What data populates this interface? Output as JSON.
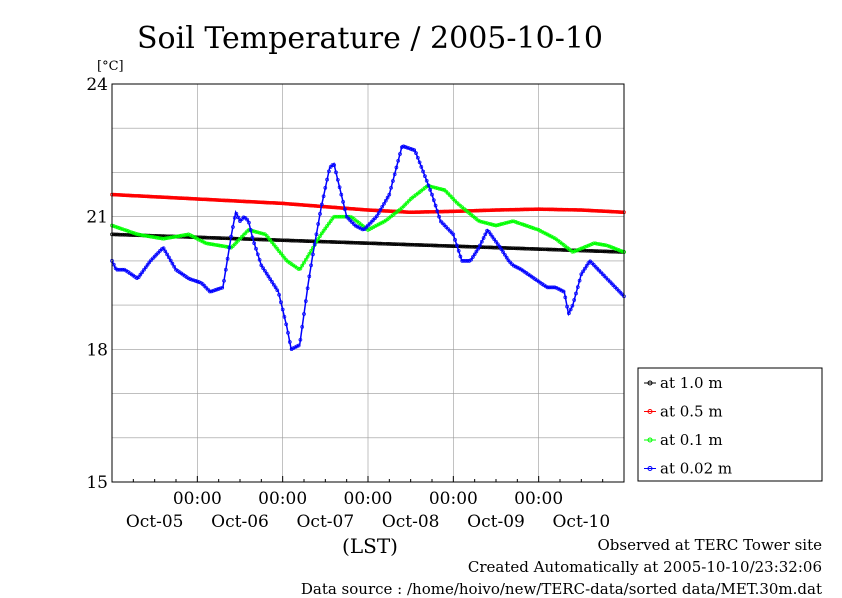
{
  "chart_data": {
    "type": "line",
    "title": "Soil Temperature / 2005-10-10",
    "ylabel": "[°C]",
    "xlabel": "(LST)",
    "ylim": [
      15,
      24
    ],
    "yticks": [
      "15",
      "18",
      "21",
      "24"
    ],
    "xlim_days": [
      0,
      6
    ],
    "xtick_time_label": "00:00",
    "xtick_days": [
      1,
      2,
      3,
      4,
      5
    ],
    "date_labels": [
      "Oct-05",
      "Oct-06",
      "Oct-07",
      "Oct-08",
      "Oct-09",
      "Oct-10"
    ],
    "date_label_days": [
      0.5,
      1.5,
      2.5,
      3.5,
      4.5,
      5.5
    ],
    "grid": true,
    "legend_position": "right",
    "series": [
      {
        "name": "at 1.0 m",
        "color": "#000000",
        "x": [
          0,
          6
        ],
        "y": [
          20.6,
          20.2
        ]
      },
      {
        "name": "at 0.5 m",
        "color": "#ff0000",
        "x": [
          0,
          1,
          2,
          3,
          3.5,
          4,
          4.5,
          5,
          5.5,
          6
        ],
        "y": [
          21.5,
          21.4,
          21.3,
          21.15,
          21.1,
          21.12,
          21.15,
          21.17,
          21.15,
          21.1
        ]
      },
      {
        "name": "at 0.1 m",
        "color": "#00ff00",
        "x": [
          0,
          0.3,
          0.6,
          0.9,
          1.1,
          1.4,
          1.6,
          1.8,
          2.05,
          2.2,
          2.45,
          2.6,
          2.8,
          3.0,
          3.2,
          3.4,
          3.5,
          3.7,
          3.9,
          4.05,
          4.3,
          4.5,
          4.7,
          5.0,
          5.2,
          5.4,
          5.65,
          5.8,
          6.0
        ],
        "y": [
          20.8,
          20.6,
          20.5,
          20.6,
          20.4,
          20.3,
          20.7,
          20.6,
          20.0,
          19.8,
          20.6,
          21.0,
          21.0,
          20.7,
          20.9,
          21.2,
          21.4,
          21.7,
          21.6,
          21.3,
          20.9,
          20.8,
          20.9,
          20.7,
          20.5,
          20.2,
          20.4,
          20.35,
          20.2
        ]
      },
      {
        "name": "at 0.02 m",
        "color": "#0000ff",
        "x": [
          0,
          0.05,
          0.15,
          0.3,
          0.45,
          0.6,
          0.75,
          0.9,
          1.05,
          1.15,
          1.3,
          1.4,
          1.45,
          1.5,
          1.55,
          1.6,
          1.65,
          1.75,
          1.85,
          1.95,
          2.05,
          2.1,
          2.15,
          2.2,
          2.3,
          2.35,
          2.45,
          2.55,
          2.6,
          2.65,
          2.75,
          2.85,
          2.95,
          3.1,
          3.25,
          3.4,
          3.55,
          3.65,
          3.75,
          3.85,
          4.0,
          4.1,
          4.2,
          4.3,
          4.4,
          4.55,
          4.65,
          4.7,
          4.8,
          4.95,
          5.1,
          5.2,
          5.3,
          5.35,
          5.4,
          5.5,
          5.6,
          5.7,
          5.8,
          5.9,
          6.0
        ],
        "y": [
          20.0,
          19.8,
          19.8,
          19.6,
          20.0,
          20.3,
          19.8,
          19.6,
          19.5,
          19.3,
          19.4,
          20.6,
          21.1,
          20.9,
          21.0,
          20.9,
          20.5,
          19.9,
          19.6,
          19.3,
          18.5,
          18.0,
          18.05,
          18.1,
          19.5,
          20.1,
          21.2,
          22.1,
          22.2,
          21.8,
          21.0,
          20.8,
          20.7,
          21.0,
          21.5,
          22.6,
          22.5,
          22.0,
          21.5,
          20.9,
          20.6,
          20.0,
          20.0,
          20.3,
          20.7,
          20.3,
          20.0,
          19.9,
          19.8,
          19.6,
          19.4,
          19.4,
          19.3,
          18.8,
          19.0,
          19.7,
          20.0,
          19.8,
          19.6,
          19.4,
          19.2
        ]
      }
    ]
  },
  "footer": {
    "observed": "Observed at TERC Tower site",
    "created": "Created Automatically at 2005-10-10/23:32:06",
    "source": "Data source : /home/hoivo/new/TERC-data/sorted data/MET.30m.dat"
  }
}
